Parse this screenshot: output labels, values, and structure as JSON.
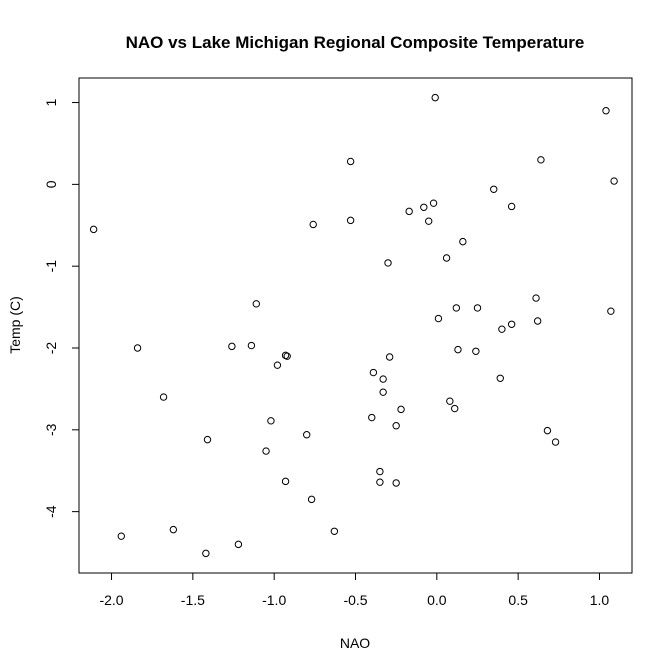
{
  "chart_data": {
    "type": "scatter",
    "title": "NAO vs Lake Michigan Regional Composite Temperature",
    "xlabel": "NAO",
    "ylabel": "Temp (C)",
    "xlim": [
      -2.2,
      1.2
    ],
    "ylim": [
      -4.75,
      1.3
    ],
    "xticks": [
      -2.0,
      -1.5,
      -1.0,
      -0.5,
      0.0,
      0.5,
      1.0
    ],
    "xtick_labels": [
      "-2.0",
      "-1.5",
      "-1.0",
      "-0.5",
      "0.0",
      "0.5",
      "1.0"
    ],
    "yticks": [
      -4,
      -3,
      -2,
      -1,
      0,
      1
    ],
    "ytick_labels": [
      "-4",
      "-3",
      "-2",
      "-1",
      "0",
      "1"
    ],
    "grid": false,
    "points": [
      {
        "x": -2.11,
        "y": -0.55
      },
      {
        "x": -1.94,
        "y": -4.3
      },
      {
        "x": -1.84,
        "y": -2.0
      },
      {
        "x": -1.68,
        "y": -2.6
      },
      {
        "x": -1.62,
        "y": -4.22
      },
      {
        "x": -1.42,
        "y": -4.51
      },
      {
        "x": -1.41,
        "y": -3.12
      },
      {
        "x": -1.26,
        "y": -1.98
      },
      {
        "x": -1.22,
        "y": -4.4
      },
      {
        "x": -1.14,
        "y": -1.97
      },
      {
        "x": -1.11,
        "y": -1.46
      },
      {
        "x": -1.05,
        "y": -3.26
      },
      {
        "x": -1.02,
        "y": -2.89
      },
      {
        "x": -0.98,
        "y": -2.21
      },
      {
        "x": -0.93,
        "y": -2.09
      },
      {
        "x": -0.92,
        "y": -2.1
      },
      {
        "x": -0.93,
        "y": -3.63
      },
      {
        "x": -0.8,
        "y": -3.06
      },
      {
        "x": -0.77,
        "y": -3.85
      },
      {
        "x": -0.76,
        "y": -0.49
      },
      {
        "x": -0.63,
        "y": -4.24
      },
      {
        "x": -0.53,
        "y": 0.28
      },
      {
        "x": -0.53,
        "y": -0.44
      },
      {
        "x": -0.4,
        "y": -2.85
      },
      {
        "x": -0.39,
        "y": -2.3
      },
      {
        "x": -0.35,
        "y": -3.51
      },
      {
        "x": -0.35,
        "y": -3.64
      },
      {
        "x": -0.33,
        "y": -2.38
      },
      {
        "x": -0.33,
        "y": -2.54
      },
      {
        "x": -0.3,
        "y": -0.96
      },
      {
        "x": -0.29,
        "y": -2.11
      },
      {
        "x": -0.25,
        "y": -3.65
      },
      {
        "x": -0.25,
        "y": -2.95
      },
      {
        "x": -0.22,
        "y": -2.75
      },
      {
        "x": -0.17,
        "y": -0.33
      },
      {
        "x": -0.08,
        "y": -0.28
      },
      {
        "x": -0.05,
        "y": -0.45
      },
      {
        "x": -0.02,
        "y": -0.23
      },
      {
        "x": -0.01,
        "y": 1.06
      },
      {
        "x": 0.01,
        "y": -1.64
      },
      {
        "x": 0.06,
        "y": -0.9
      },
      {
        "x": 0.08,
        "y": -2.65
      },
      {
        "x": 0.11,
        "y": -2.74
      },
      {
        "x": 0.12,
        "y": -1.51
      },
      {
        "x": 0.13,
        "y": -2.02
      },
      {
        "x": 0.16,
        "y": -0.7
      },
      {
        "x": 0.24,
        "y": -2.04
      },
      {
        "x": 0.25,
        "y": -1.51
      },
      {
        "x": 0.35,
        "y": -0.06
      },
      {
        "x": 0.39,
        "y": -2.37
      },
      {
        "x": 0.4,
        "y": -1.77
      },
      {
        "x": 0.46,
        "y": -0.27
      },
      {
        "x": 0.46,
        "y": -1.71
      },
      {
        "x": 0.61,
        "y": -1.39
      },
      {
        "x": 0.62,
        "y": -1.67
      },
      {
        "x": 0.64,
        "y": 0.3
      },
      {
        "x": 0.68,
        "y": -3.01
      },
      {
        "x": 0.73,
        "y": -3.15
      },
      {
        "x": 1.04,
        "y": 0.9
      },
      {
        "x": 1.07,
        "y": -1.55
      },
      {
        "x": 1.09,
        "y": 0.04
      }
    ]
  }
}
